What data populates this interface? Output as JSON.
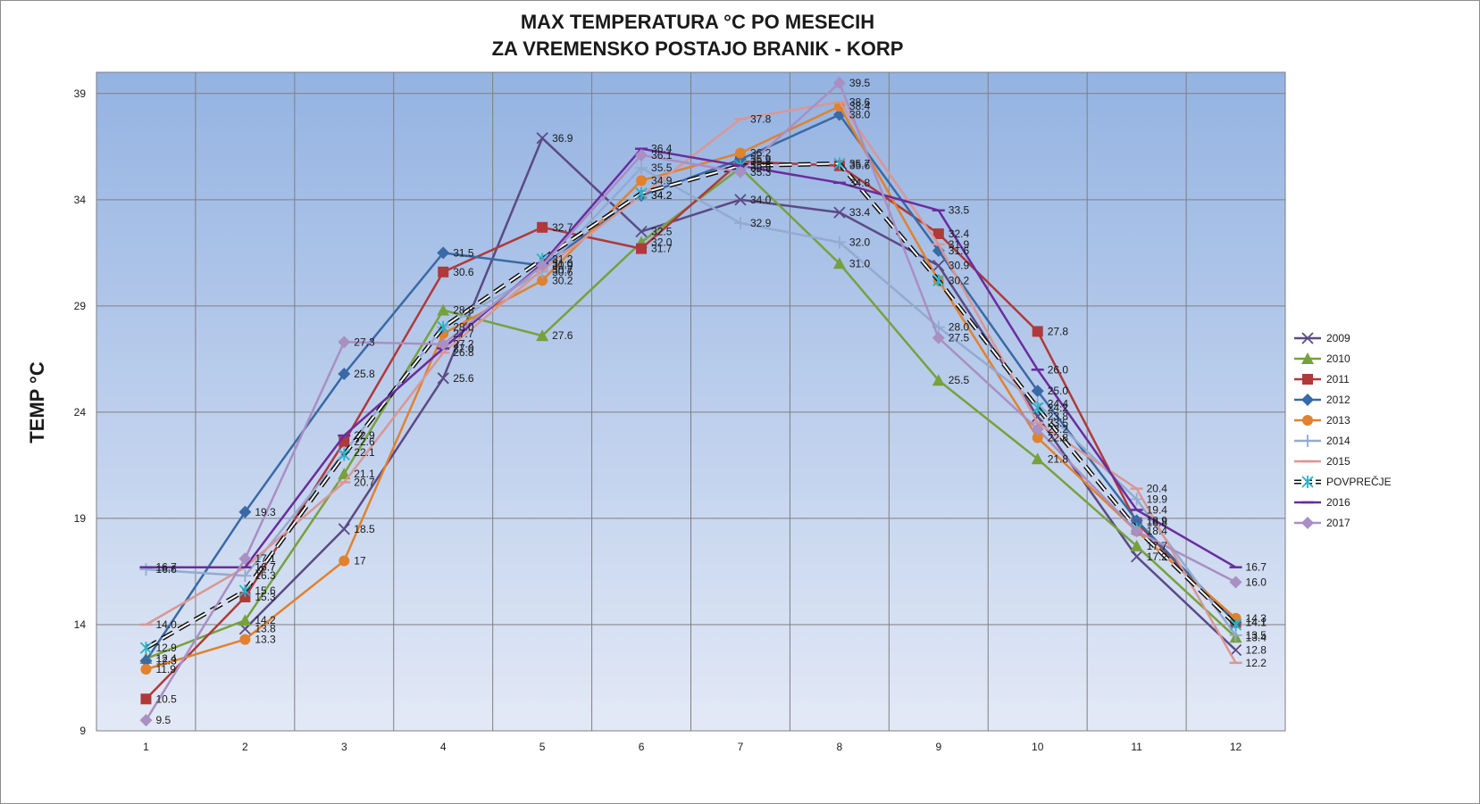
{
  "chart_data": {
    "type": "line",
    "title": [
      "MAX  TEMPERATURA  °C PO MESECIH",
      "ZA VREMENSKO POSTAJO BRANIK - KORP"
    ],
    "xlabel": "",
    "ylabel": "TEMP °C",
    "x": [
      1,
      2,
      3,
      4,
      5,
      6,
      7,
      8,
      9,
      10,
      11,
      12
    ],
    "ylim": [
      9,
      40
    ],
    "yticks": [
      9,
      14,
      19,
      24,
      29,
      34,
      39
    ],
    "grid": true,
    "legend_position": "right",
    "series": [
      {
        "name": "2009",
        "color": "#5b4a85",
        "marker": "x",
        "dashed": false,
        "values": [
          null,
          13.8,
          18.5,
          25.6,
          36.9,
          32.5,
          34.0,
          33.4,
          30.9,
          23.8,
          17.2,
          12.8
        ],
        "labels": [
          "",
          "13.8",
          "18.5",
          "25.6",
          "36.9",
          "32.5",
          "34.0",
          "33.4",
          "30.9",
          "23.8",
          "17.2",
          "12.8"
        ]
      },
      {
        "name": "2010",
        "color": "#77a13d",
        "marker": "triangle",
        "dashed": false,
        "values": [
          12.4,
          14.2,
          21.1,
          28.8,
          27.6,
          32.0,
          35.5,
          31.0,
          25.5,
          21.8,
          17.7,
          13.4
        ],
        "labels": [
          "12.4",
          "14.2",
          "21.1",
          "28.8",
          "27.6",
          "32.0",
          "35.5",
          "31.0",
          "25.5",
          "21.8",
          "17.7",
          "13.4"
        ]
      },
      {
        "name": "2011",
        "color": "#b0393a",
        "marker": "square",
        "dashed": false,
        "values": [
          10.5,
          15.3,
          22.6,
          30.6,
          32.7,
          31.7,
          35.8,
          35.6,
          32.4,
          27.8,
          18.8,
          14.1
        ],
        "labels": [
          "10.5",
          "15.3",
          "22.6",
          "30.6",
          "32.7",
          "31.7",
          "35.8",
          "35.6",
          "32.4",
          "27.8",
          "18.8",
          "14.1"
        ]
      },
      {
        "name": "2012",
        "color": "#3a6aa5",
        "marker": "diamond",
        "dashed": false,
        "values": [
          12.3,
          19.3,
          25.8,
          31.5,
          30.9,
          34.2,
          35.9,
          38.0,
          31.6,
          25.0,
          18.9,
          14.1
        ],
        "labels": [
          "12.3",
          "19.3",
          "25.8",
          "31.5",
          "30.9",
          "34.2",
          "35.9",
          "38.0",
          "31.6",
          "25.0",
          "18.9",
          "14.1"
        ]
      },
      {
        "name": "2013",
        "color": "#e0822e",
        "marker": "circle",
        "dashed": false,
        "values": [
          11.9,
          13.3,
          17,
          27.7,
          30.2,
          34.9,
          36.2,
          38.4,
          30.2,
          22.8,
          18.4,
          14.3
        ],
        "labels": [
          "11.9",
          "13.3",
          "17",
          "27.7",
          "30.2",
          "34.9",
          "36.2",
          "38.4",
          "30.2",
          "22.8",
          "18.4",
          "14.3"
        ]
      },
      {
        "name": "2014",
        "color": "#94aad0",
        "marker": "plus",
        "dashed": false,
        "values": [
          16.6,
          16.3,
          22.1,
          28.0,
          30.6,
          35.5,
          32.9,
          32.0,
          28.0,
          24.4,
          19.9,
          13.5
        ],
        "labels": [
          "16.6",
          "16.3",
          "22.1",
          "28.0",
          "30.6",
          "35.5",
          "32.9",
          "32.0",
          "28.0",
          "24.4",
          "19.9",
          "13.5"
        ]
      },
      {
        "name": "2015",
        "color": "#d99795",
        "marker": "dash",
        "dashed": false,
        "values": [
          14.0,
          16.7,
          20.7,
          26.8,
          30.7,
          34.2,
          37.8,
          38.6,
          31.9,
          23.5,
          20.4,
          12.2
        ],
        "labels": [
          "14.0",
          "16.7",
          "20.7",
          "26.8",
          "30.7",
          "34.2",
          "37.8",
          "38.6",
          "31.9",
          "23.5",
          "20.4",
          "12.2"
        ]
      },
      {
        "name": "POVPREČJE",
        "color": "#111111",
        "marker": "asterisk",
        "dashed": true,
        "values": [
          12.9,
          15.6,
          22.0,
          28.0,
          31.2,
          34.3,
          35.6,
          35.7,
          30.2,
          24.2,
          18.5,
          14.0
        ],
        "labels": [
          "12.9",
          "15.6",
          "",
          "",
          "31.2",
          "",
          "",
          "35.7",
          "",
          "24.2",
          "",
          ""
        ]
      },
      {
        "name": "2016",
        "color": "#6a2c9e",
        "marker": "dash",
        "dashed": false,
        "values": [
          16.7,
          16.7,
          22.9,
          27.0,
          31.0,
          36.4,
          35.6,
          34.8,
          33.5,
          26.0,
          19.4,
          16.7
        ],
        "labels": [
          "16.7",
          "16.7",
          "22.9",
          "27.0",
          "31.0",
          "36.4",
          "35.6",
          "34.8",
          "33.5",
          "26.0",
          "19.4",
          "16.7"
        ]
      },
      {
        "name": "2017",
        "color": "#a98fc2",
        "marker": "diamond",
        "dashed": false,
        "values": [
          9.5,
          17.1,
          27.3,
          27.2,
          30.9,
          36.1,
          35.3,
          39.5,
          27.5,
          23.2,
          18.4,
          16.0
        ],
        "labels": [
          "9.5",
          "17.1",
          "27.3",
          "27.2",
          "",
          "36.1",
          "35.3",
          "39.5",
          "27.5",
          "23.2",
          "",
          "16.0"
        ]
      }
    ]
  }
}
